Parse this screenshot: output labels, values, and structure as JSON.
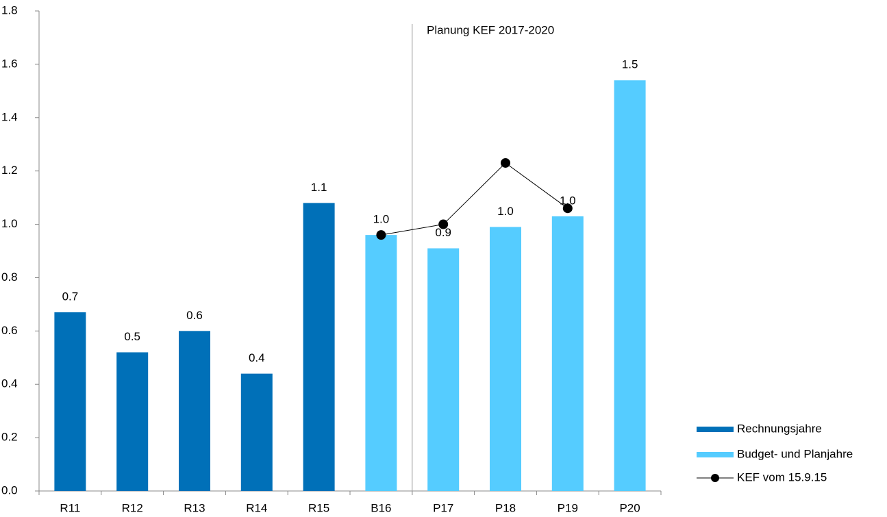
{
  "chart_data": {
    "type": "bar",
    "categories": [
      "R11",
      "R12",
      "R13",
      "R14",
      "R15",
      "B16",
      "P17",
      "P18",
      "P19",
      "P20"
    ],
    "series": [
      {
        "name": "Rechnungsjahre",
        "color": "#0070b8",
        "type": "bar",
        "values": [
          0.67,
          0.52,
          0.6,
          0.44,
          1.08,
          null,
          null,
          null,
          null,
          null
        ],
        "value_labels": [
          "0.7",
          "0.5",
          "0.6",
          "0.4",
          "1.1",
          null,
          null,
          null,
          null,
          null
        ]
      },
      {
        "name": "Budget- und Planjahre",
        "color": "#55ccff",
        "type": "bar",
        "values": [
          null,
          null,
          null,
          null,
          null,
          0.96,
          0.91,
          0.99,
          1.03,
          1.54
        ],
        "value_labels": [
          null,
          null,
          null,
          null,
          null,
          "1.0",
          "0.9",
          "1.0",
          "1.0",
          "1.5"
        ]
      },
      {
        "name": "KEF vom 15.9.15",
        "color": "#000000",
        "type": "line",
        "values": [
          null,
          null,
          null,
          null,
          null,
          0.96,
          1.0,
          1.23,
          1.06,
          null
        ]
      }
    ],
    "annotations": [
      "Planung KEF 2017-2020"
    ],
    "ylim": [
      0,
      1.8
    ],
    "yticks": [
      {
        "value": 0,
        "label": "0.0"
      },
      0.2,
      0.4,
      0.6,
      0.8,
      {
        "value": 1,
        "label": "1.0"
      },
      1.2,
      1.4,
      1.6,
      1.8
    ],
    "grid": false,
    "legend": "lower right"
  }
}
